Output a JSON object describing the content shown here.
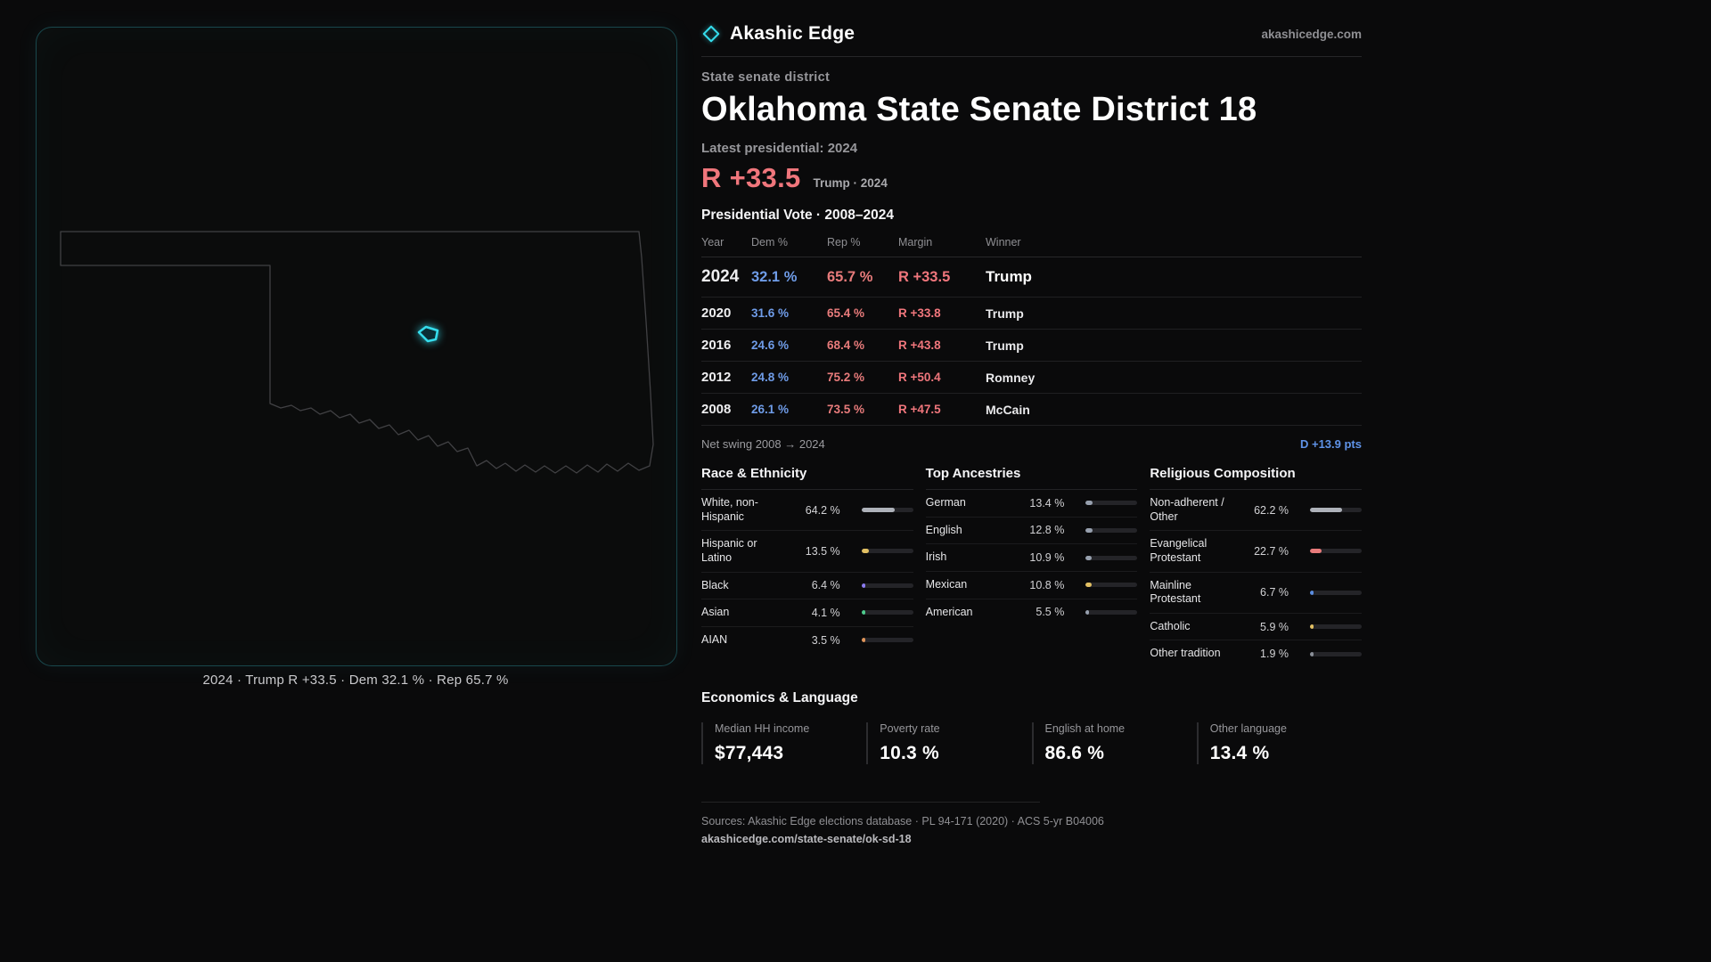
{
  "brand": {
    "name": "Akashic Edge",
    "site": "akashicedge.com"
  },
  "map": {
    "caption": "2024 · Trump R +33.5 · Dem 32.1 % · Rep 65.7 %",
    "accent": "#35dcec",
    "outline_color": "#414144"
  },
  "district": {
    "kicker": "State senate district",
    "title": "Oklahoma State Senate District 18",
    "latest_label": "Latest presidential: 2024",
    "headline_margin": "R +33.5",
    "headline_note": "Trump · 2024"
  },
  "vote": {
    "section_title": "Presidential Vote · 2008–2024",
    "columns": [
      "Year",
      "Dem %",
      "Rep %",
      "Margin",
      "Winner"
    ],
    "rows": [
      {
        "year": "2024",
        "dem": "32.1 %",
        "rep": "65.7 %",
        "margin": "R +33.5",
        "winner": "Trump"
      },
      {
        "year": "2020",
        "dem": "31.6 %",
        "rep": "65.4 %",
        "margin": "R +33.8",
        "winner": "Trump"
      },
      {
        "year": "2016",
        "dem": "24.6 %",
        "rep": "68.4 %",
        "margin": "R +43.8",
        "winner": "Trump"
      },
      {
        "year": "2012",
        "dem": "24.8 %",
        "rep": "75.2 %",
        "margin": "R +50.4",
        "winner": "Romney"
      },
      {
        "year": "2008",
        "dem": "26.1 %",
        "rep": "73.5 %",
        "margin": "R +47.5",
        "winner": "McCain"
      }
    ],
    "net_swing_label": "Net swing 2008 → 2024",
    "net_swing_value": "D +13.9 pts"
  },
  "demographics": [
    {
      "title": "Race & Ethnicity",
      "items": [
        {
          "label": "White, non-Hispanic",
          "value": "64.2 %",
          "pct": 64.2,
          "color": "#aeb2ba"
        },
        {
          "label": "Hispanic or Latino",
          "value": "13.5 %",
          "pct": 13.5,
          "color": "#e2c063"
        },
        {
          "label": "Black",
          "value": "6.4 %",
          "pct": 6.4,
          "color": "#8b7bf0"
        },
        {
          "label": "Asian",
          "value": "4.1 %",
          "pct": 4.1,
          "color": "#4ecb8d"
        },
        {
          "label": "AIAN",
          "value": "3.5 %",
          "pct": 3.5,
          "color": "#e0955a"
        }
      ]
    },
    {
      "title": "Top Ancestries",
      "items": [
        {
          "label": "German",
          "value": "13.4 %",
          "pct": 13.4,
          "color": "#97a0ae"
        },
        {
          "label": "English",
          "value": "12.8 %",
          "pct": 12.8,
          "color": "#97a0ae"
        },
        {
          "label": "Irish",
          "value": "10.9 %",
          "pct": 10.9,
          "color": "#97a0ae"
        },
        {
          "label": "Mexican",
          "value": "10.8 %",
          "pct": 10.8,
          "color": "#e2c063"
        },
        {
          "label": "American",
          "value": "5.5 %",
          "pct": 5.5,
          "color": "#97a0ae"
        }
      ]
    },
    {
      "title": "Religious Composition",
      "items": [
        {
          "label": "Non-adherent / Other",
          "value": "62.2 %",
          "pct": 62.2,
          "color": "#aeb2ba"
        },
        {
          "label": "Evangelical Protestant",
          "value": "22.7 %",
          "pct": 22.7,
          "color": "#e87b7b"
        },
        {
          "label": "Mainline Protestant",
          "value": "6.7 %",
          "pct": 6.7,
          "color": "#5b8de0"
        },
        {
          "label": "Catholic",
          "value": "5.9 %",
          "pct": 5.9,
          "color": "#e2c063"
        },
        {
          "label": "Other tradition",
          "value": "1.9 %",
          "pct": 1.9,
          "color": "#8a8f98"
        }
      ]
    }
  ],
  "economics": {
    "title": "Economics & Language",
    "stats": [
      {
        "label": "Median HH income",
        "value": "$77,443"
      },
      {
        "label": "Poverty rate",
        "value": "10.3 %"
      },
      {
        "label": "English at home",
        "value": "86.6 %"
      },
      {
        "label": "Other language",
        "value": "13.4 %"
      }
    ]
  },
  "footer": {
    "sources": "Sources: Akashic Edge elections database · PL 94-171 (2020) · ACS 5-yr B04006",
    "permalink": "akashicedge.com/state-senate/ok-sd-18"
  },
  "colors": {
    "dem": "#6f9ce8",
    "rep": "#e87b7b",
    "margin": "#f0767c",
    "swing": "#5f93e8"
  },
  "chart_data": [
    {
      "type": "table",
      "title": "Presidential Vote · 2008–2024",
      "columns": [
        "Year",
        "Dem %",
        "Rep %",
        "Margin",
        "Winner"
      ],
      "rows": [
        [
          "2024",
          32.1,
          65.7,
          "R +33.5",
          "Trump"
        ],
        [
          "2020",
          31.6,
          65.4,
          "R +33.8",
          "Trump"
        ],
        [
          "2016",
          24.6,
          68.4,
          "R +43.8",
          "Trump"
        ],
        [
          "2012",
          24.8,
          75.2,
          "R +50.4",
          "Romney"
        ],
        [
          "2008",
          26.1,
          73.5,
          "R +47.5",
          "McCain"
        ]
      ],
      "annotations": [
        "Net swing 2008 → 2024: D +13.9 pts"
      ]
    },
    {
      "type": "bar",
      "title": "Race & Ethnicity",
      "categories": [
        "White, non-Hispanic",
        "Hispanic or Latino",
        "Black",
        "Asian",
        "AIAN"
      ],
      "values": [
        64.2,
        13.5,
        6.4,
        4.1,
        3.5
      ],
      "xlabel": "",
      "ylabel": "",
      "xlim": [
        0,
        100
      ]
    },
    {
      "type": "bar",
      "title": "Top Ancestries",
      "categories": [
        "German",
        "English",
        "Irish",
        "Mexican",
        "American"
      ],
      "values": [
        13.4,
        12.8,
        10.9,
        10.8,
        5.5
      ],
      "xlabel": "",
      "ylabel": "",
      "xlim": [
        0,
        100
      ]
    },
    {
      "type": "bar",
      "title": "Religious Composition",
      "categories": [
        "Non-adherent / Other",
        "Evangelical Protestant",
        "Mainline Protestant",
        "Catholic",
        "Other tradition"
      ],
      "values": [
        62.2,
        22.7,
        6.7,
        5.9,
        1.9
      ],
      "xlabel": "",
      "ylabel": "",
      "xlim": [
        0,
        100
      ]
    }
  ]
}
